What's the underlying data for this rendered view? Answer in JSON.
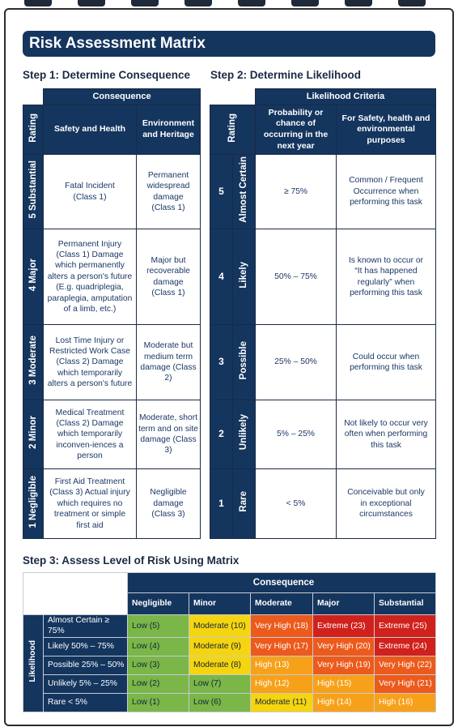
{
  "title": "Risk Assessment Matrix",
  "step1": {
    "heading": "Step 1: Determine Consequence",
    "group_header": "Consequence",
    "col_rating": "Rating",
    "col_safety": "Safety and Health",
    "col_env": "Environment and Heritage",
    "rows": [
      {
        "rating": "5 Substantial",
        "safety": "Fatal Incident (Class 1)",
        "env": "Permanent widespread damage (Class 1)"
      },
      {
        "rating": "4 Major",
        "safety": "Permanent Injury (Class 1) Damage which permanently alters a person's future (E.g. quadriplegia, paraplegia, amputation of a limb, etc.)",
        "env": "Major but recoverable damage (Class 1)"
      },
      {
        "rating": "3 Moderate",
        "safety": "Lost Time Injury or Restricted Work Case (Class 2) Damage which temporarily alters a person's future",
        "env": "Moderate but medium term damage (Class 2)"
      },
      {
        "rating": "2 Minor",
        "safety": "Medical Treatment (Class 2) Damage which temporarily inconven-iences a person",
        "env": "Moderate, short term and on site damage (Class 3)"
      },
      {
        "rating": "1 Negligible",
        "safety": "First Aid Treatment (Class 3) Actual injury which requires no treatment or simple first aid",
        "env": "Negligible damage (Class 3)"
      }
    ]
  },
  "step2": {
    "heading": "Step 2: Determine Likelihood",
    "group_header": "Likelihood Criteria",
    "col_rating": "Rating",
    "col_probability": "Probability or chance of occurring in the next year",
    "col_purpose": "For Safety, health and environmental purposes",
    "rows": [
      {
        "num": "5",
        "name": "Almost Certain",
        "probability": "≥ 75%",
        "desc": "Common / Frequent Occurrence when performing this task"
      },
      {
        "num": "4",
        "name": "Likely",
        "probability": "50% – 75%",
        "desc": "Is known to occur or “It has happened regularly” when performing this task"
      },
      {
        "num": "3",
        "name": "Possible",
        "probability": "25% – 50%",
        "desc": "Could occur when performing this task"
      },
      {
        "num": "2",
        "name": "Unlikely",
        "probability": "5% – 25%",
        "desc": "Not likely to occur very often when performing this task"
      },
      {
        "num": "1",
        "name": "Rare",
        "probability": "< 5%",
        "desc": "Conceivable but only in exceptional circumstances"
      }
    ]
  },
  "step3": {
    "heading": "Step 3: Assess Level of Risk Using Matrix",
    "consequence_label": "Consequence",
    "likelihood_label": "Likelihood",
    "columns": [
      "Negligible",
      "Minor",
      "Moderate",
      "Major",
      "Substantial"
    ],
    "rows": [
      {
        "label": "Almost Certain ≥ 75%",
        "cells": [
          {
            "text": "Low (5)",
            "level": "low"
          },
          {
            "text": "Moderate (10)",
            "level": "mod"
          },
          {
            "text": "Very High (18)",
            "level": "vh"
          },
          {
            "text": "Extreme (23)",
            "level": "ext"
          },
          {
            "text": "Extreme (25)",
            "level": "ext"
          }
        ]
      },
      {
        "label": "Likely 50% – 75%",
        "cells": [
          {
            "text": "Low (4)",
            "level": "low"
          },
          {
            "text": "Moderate (9)",
            "level": "mod"
          },
          {
            "text": "Very High (17)",
            "level": "vh"
          },
          {
            "text": "Very High (20)",
            "level": "vh"
          },
          {
            "text": "Extreme (24)",
            "level": "ext"
          }
        ]
      },
      {
        "label": "Possible 25% – 50%",
        "cells": [
          {
            "text": "Low (3)",
            "level": "low"
          },
          {
            "text": "Moderate (8)",
            "level": "mod"
          },
          {
            "text": "High (13)",
            "level": "high"
          },
          {
            "text": "Very High (19)",
            "level": "vh"
          },
          {
            "text": "Very High (22)",
            "level": "vh"
          }
        ]
      },
      {
        "label": "Unlikely 5% – 25%",
        "cells": [
          {
            "text": "Low (2)",
            "level": "low"
          },
          {
            "text": "Low (7)",
            "level": "low"
          },
          {
            "text": "High (12)",
            "level": "high"
          },
          {
            "text": "High (15)",
            "level": "high"
          },
          {
            "text": "Very High (21)",
            "level": "vh"
          }
        ]
      },
      {
        "label": "Rare < 5%",
        "cells": [
          {
            "text": "Low (1)",
            "level": "low"
          },
          {
            "text": "Low (6)",
            "level": "low"
          },
          {
            "text": "Moderate (11)",
            "level": "mod"
          },
          {
            "text": "High (14)",
            "level": "high"
          },
          {
            "text": "High (16)",
            "level": "high"
          }
        ]
      }
    ]
  },
  "colors": {
    "navy": "#14355e",
    "low": "#7ab648",
    "moderate": "#f5d510",
    "high": "#f7a11a",
    "very_high": "#ec5a1c",
    "extreme": "#d0211c"
  }
}
